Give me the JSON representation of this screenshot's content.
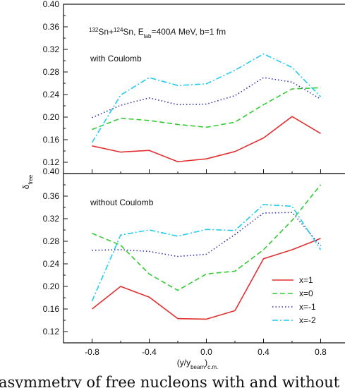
{
  "chart_data": [
    {
      "type": "line",
      "annotation": "132Sn+124Sn, Elab=400A MeV, b=1 fm",
      "annotation_parts": {
        "m1": "132",
        "p1": "Sn+",
        "m2": "124",
        "p2": "Sn, E",
        "sub": "lab",
        "p3": "=400",
        "it": "A",
        "p4": " MeV, b=1 fm"
      },
      "panel_label": "with Coulomb",
      "xlabel": "(y/y_beam)c.m.",
      "ylabel": "δfree",
      "xlim": [
        -1.0,
        1.0
      ],
      "ylim": [
        0.1,
        0.4
      ],
      "xticks": [
        -0.8,
        -0.4,
        0.0,
        0.4,
        0.8
      ],
      "xtick_labels": [
        "-0.8",
        "-0.4",
        "0.0",
        "0.4",
        "0.8"
      ],
      "yticks": [
        0.12,
        0.16,
        0.2,
        0.24,
        0.28,
        0.32,
        0.36,
        0.4
      ],
      "ytick_labels": [
        "0.12",
        "0.16",
        "0.20",
        "0.24",
        "0.28",
        "0.32",
        "0.36",
        "0.40"
      ],
      "x": [
        -0.8,
        -0.6,
        -0.4,
        -0.2,
        0.0,
        0.2,
        0.4,
        0.6,
        0.8
      ],
      "series": [
        {
          "name": "x=1",
          "color": "#e03030",
          "style": "solid",
          "values": [
            0.149,
            0.138,
            0.141,
            0.121,
            0.126,
            0.139,
            0.163,
            0.201,
            0.171
          ]
        },
        {
          "name": "x=0",
          "color": "#33cc33",
          "style": "dashed",
          "values": [
            0.178,
            0.198,
            0.194,
            0.187,
            0.182,
            0.191,
            0.222,
            0.25,
            0.252
          ]
        },
        {
          "name": "x=-1",
          "color": "#3333aa",
          "style": "dotted",
          "values": [
            0.199,
            0.221,
            0.234,
            0.222,
            0.223,
            0.238,
            0.27,
            0.262,
            0.232
          ]
        },
        {
          "name": "x=-2",
          "color": "#22ccee",
          "style": "dashdot",
          "values": [
            0.155,
            0.239,
            0.27,
            0.256,
            0.259,
            0.283,
            0.312,
            0.288,
            0.236
          ]
        }
      ]
    },
    {
      "type": "line",
      "panel_label": "without Coulomb",
      "xlabel": "(y/y_beam)c.m.",
      "ylabel": "δfree",
      "xlim": [
        -1.0,
        1.0
      ],
      "ylim": [
        0.1,
        0.4
      ],
      "xticks": [
        -0.8,
        -0.4,
        0.0,
        0.4,
        0.8
      ],
      "xtick_labels": [
        "-0.8",
        "-0.4",
        "0.0",
        "0.4",
        "0.8"
      ],
      "yticks": [
        0.12,
        0.16,
        0.2,
        0.24,
        0.28,
        0.32,
        0.36,
        0.4
      ],
      "ytick_labels": [
        "0.12",
        "0.16",
        "0.20",
        "0.24",
        "0.28",
        "0.32",
        "0.36",
        "0.40"
      ],
      "x": [
        -0.8,
        -0.6,
        -0.4,
        -0.2,
        0.0,
        0.2,
        0.4,
        0.6,
        0.8
      ],
      "series": [
        {
          "name": "x=1",
          "color": "#e03030",
          "style": "solid",
          "values": [
            0.16,
            0.2,
            0.181,
            0.143,
            0.142,
            0.157,
            0.249,
            0.265,
            0.285
          ]
        },
        {
          "name": "x=0",
          "color": "#33cc33",
          "style": "dashed",
          "values": [
            0.294,
            0.273,
            0.222,
            0.193,
            0.222,
            0.227,
            0.265,
            0.317,
            0.38
          ]
        },
        {
          "name": "x=-1",
          "color": "#3333aa",
          "style": "dotted",
          "values": [
            0.264,
            0.265,
            0.262,
            0.253,
            0.257,
            0.292,
            0.33,
            0.331,
            0.272
          ]
        },
        {
          "name": "x=-2",
          "color": "#22ccee",
          "style": "dashdot",
          "values": [
            0.174,
            0.291,
            0.3,
            0.289,
            0.301,
            0.299,
            0.345,
            0.342,
            0.265
          ]
        }
      ],
      "legend": {
        "placement": "bottom-right",
        "entries": [
          "x=1",
          "x=0",
          "x=-1",
          "x=-2"
        ]
      }
    }
  ],
  "caption_fragment": "asymmetry of free nucleons with and without"
}
